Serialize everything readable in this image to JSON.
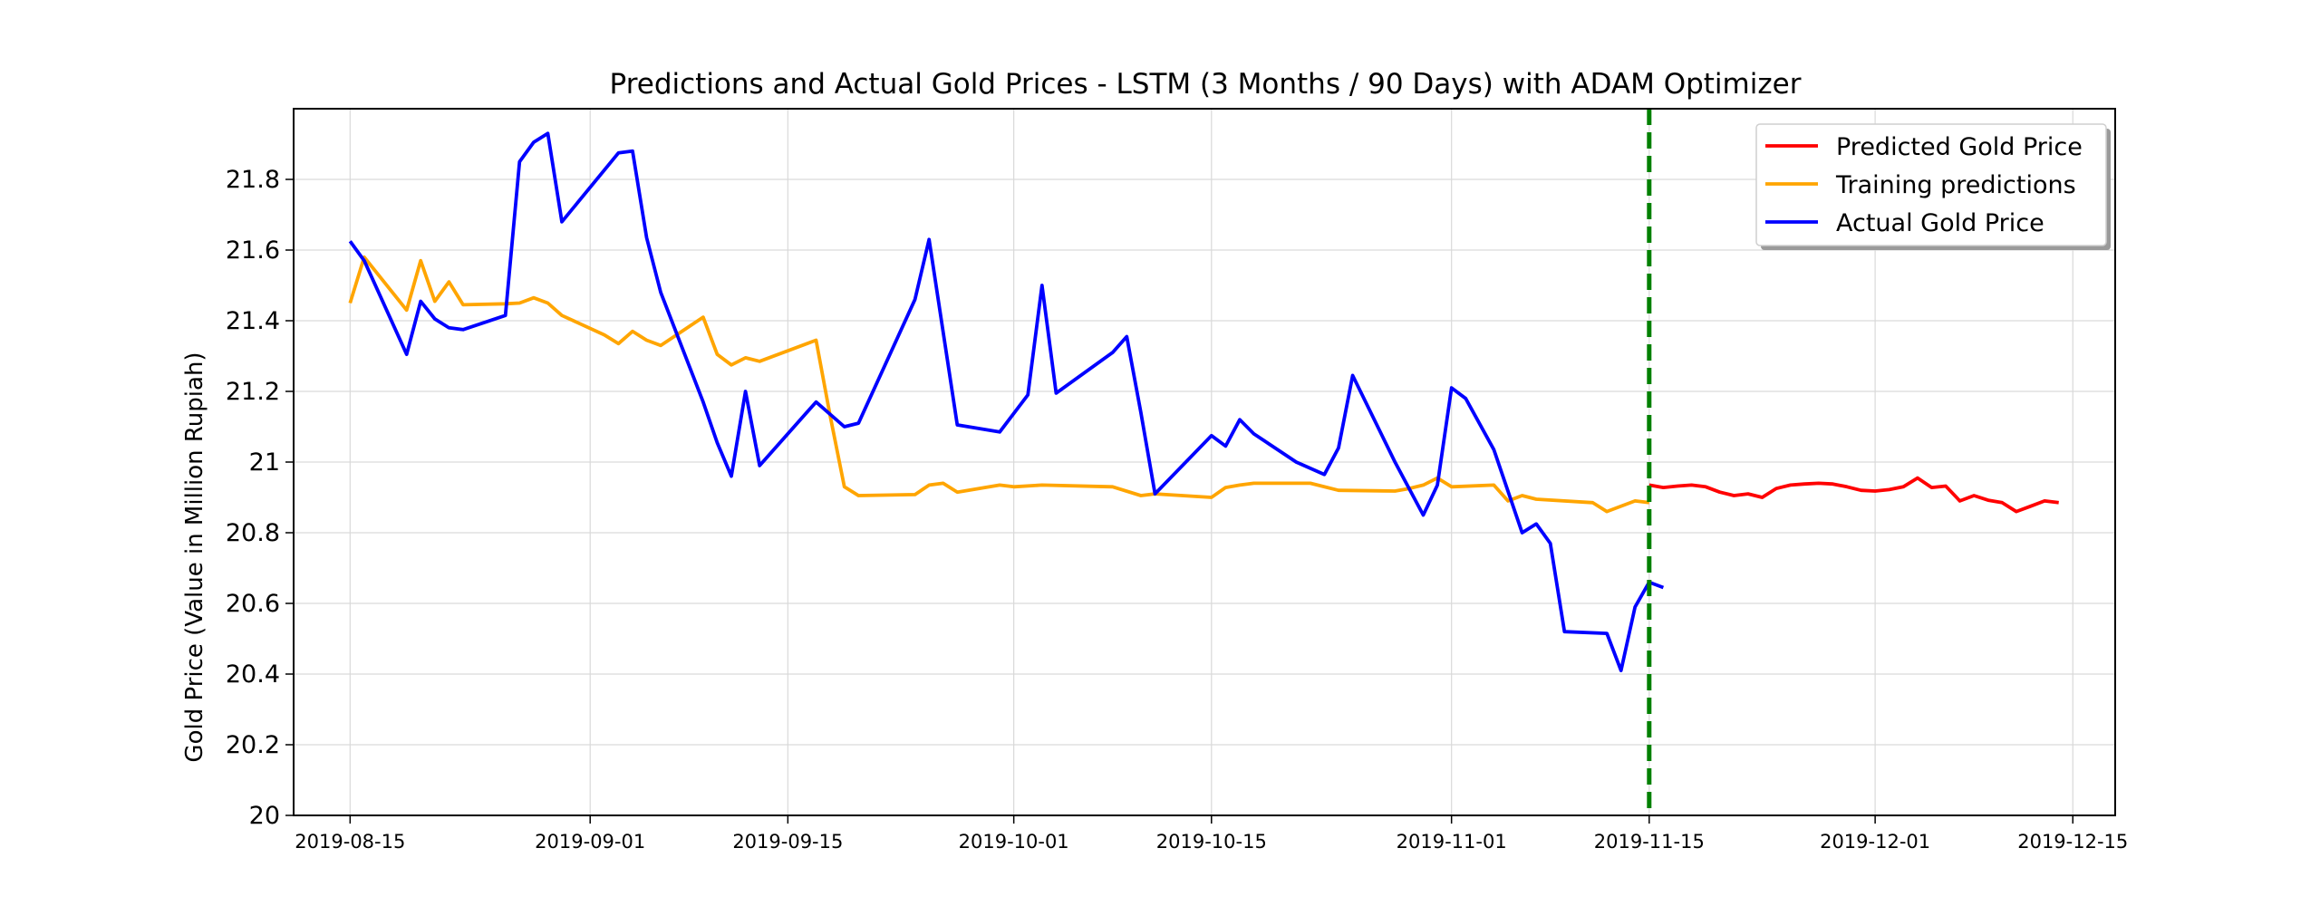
{
  "chart_data": {
    "type": "line",
    "title": "Predictions and Actual Gold Prices - LSTM (3 Months / 90 Days) with ADAM Optimizer",
    "xlabel": "",
    "ylabel": "Gold Price (Value in Million Rupiah)",
    "xlim": [
      "2019-08-11",
      "2019-12-18"
    ],
    "ylim": [
      20,
      22
    ],
    "yticks": [
      20,
      20.2,
      20.4,
      20.6,
      20.8,
      21,
      21.2,
      21.4,
      21.6,
      21.8
    ],
    "ytick_labels": [
      "20",
      "20.2",
      "20.4",
      "20.6",
      "20.8",
      "21",
      "21.2",
      "21.4",
      "21.6",
      "21.8"
    ],
    "xticks": [
      "2019-08-15",
      "2019-09-01",
      "2019-09-15",
      "2019-10-01",
      "2019-10-15",
      "2019-11-01",
      "2019-11-15",
      "2019-12-01",
      "2019-12-15"
    ],
    "xtick_labels": [
      "2019-08-15",
      "2019-09-01",
      "2019-09-15",
      "2019-10-01",
      "2019-10-15",
      "2019-11-01",
      "2019-11-15",
      "2019-12-01",
      "2019-12-15"
    ],
    "grid": true,
    "legend_position": "top-right",
    "vline": {
      "x": "2019-11-15",
      "color": "#008000",
      "style": "dashed"
    },
    "series": [
      {
        "name": "Predicted Gold Price",
        "color": "#ff0000",
        "points": [
          [
            "2019-11-15",
            20.935
          ],
          [
            "2019-11-16",
            20.928
          ],
          [
            "2019-11-17",
            20.932
          ],
          [
            "2019-11-18",
            20.935
          ],
          [
            "2019-11-19",
            20.93
          ],
          [
            "2019-11-20",
            20.915
          ],
          [
            "2019-11-21",
            20.905
          ],
          [
            "2019-11-22",
            20.91
          ],
          [
            "2019-11-23",
            20.9
          ],
          [
            "2019-11-24",
            20.925
          ],
          [
            "2019-11-25",
            20.935
          ],
          [
            "2019-11-26",
            20.938
          ],
          [
            "2019-11-27",
            20.94
          ],
          [
            "2019-11-28",
            20.938
          ],
          [
            "2019-11-29",
            20.93
          ],
          [
            "2019-11-30",
            20.92
          ],
          [
            "2019-12-01",
            20.918
          ],
          [
            "2019-12-02",
            20.922
          ],
          [
            "2019-12-03",
            20.93
          ],
          [
            "2019-12-04",
            20.955
          ],
          [
            "2019-12-05",
            20.928
          ],
          [
            "2019-12-06",
            20.932
          ],
          [
            "2019-12-07",
            20.89
          ],
          [
            "2019-12-08",
            20.905
          ],
          [
            "2019-12-09",
            20.892
          ],
          [
            "2019-12-10",
            20.885
          ],
          [
            "2019-12-11",
            20.86
          ],
          [
            "2019-12-12",
            20.875
          ],
          [
            "2019-12-13",
            20.89
          ],
          [
            "2019-12-14",
            20.885
          ]
        ]
      },
      {
        "name": "Training predictions",
        "color": "#ffa500",
        "points": [
          [
            "2019-08-15",
            21.45
          ],
          [
            "2019-08-16",
            21.58
          ],
          [
            "2019-08-19",
            21.43
          ],
          [
            "2019-08-20",
            21.57
          ],
          [
            "2019-08-21",
            21.455
          ],
          [
            "2019-08-22",
            21.51
          ],
          [
            "2019-08-23",
            21.445
          ],
          [
            "2019-08-26",
            21.448
          ],
          [
            "2019-08-27",
            21.45
          ],
          [
            "2019-08-28",
            21.465
          ],
          [
            "2019-08-29",
            21.45
          ],
          [
            "2019-08-30",
            21.415
          ],
          [
            "2019-09-02",
            21.36
          ],
          [
            "2019-09-03",
            21.335
          ],
          [
            "2019-09-04",
            21.37
          ],
          [
            "2019-09-05",
            21.345
          ],
          [
            "2019-09-06",
            21.33
          ],
          [
            "2019-09-09",
            21.41
          ],
          [
            "2019-09-10",
            21.305
          ],
          [
            "2019-09-11",
            21.275
          ],
          [
            "2019-09-12",
            21.295
          ],
          [
            "2019-09-13",
            21.285
          ],
          [
            "2019-09-17",
            21.345
          ],
          [
            "2019-09-18",
            21.13
          ],
          [
            "2019-09-19",
            20.93
          ],
          [
            "2019-09-20",
            20.905
          ],
          [
            "2019-09-24",
            20.908
          ],
          [
            "2019-09-25",
            20.935
          ],
          [
            "2019-09-26",
            20.94
          ],
          [
            "2019-09-27",
            20.915
          ],
          [
            "2019-09-30",
            20.935
          ],
          [
            "2019-10-01",
            20.93
          ],
          [
            "2019-10-03",
            20.935
          ],
          [
            "2019-10-08",
            20.93
          ],
          [
            "2019-10-10",
            20.905
          ],
          [
            "2019-10-11",
            20.91
          ],
          [
            "2019-10-15",
            20.9
          ],
          [
            "2019-10-16",
            20.928
          ],
          [
            "2019-10-17",
            20.935
          ],
          [
            "2019-10-18",
            20.94
          ],
          [
            "2019-10-22",
            20.94
          ],
          [
            "2019-10-24",
            20.92
          ],
          [
            "2019-10-28",
            20.918
          ],
          [
            "2019-10-29",
            20.925
          ],
          [
            "2019-10-30",
            20.935
          ],
          [
            "2019-10-31",
            20.955
          ],
          [
            "2019-11-01",
            20.93
          ],
          [
            "2019-11-04",
            20.935
          ],
          [
            "2019-11-05",
            20.89
          ],
          [
            "2019-11-06",
            20.905
          ],
          [
            "2019-11-07",
            20.895
          ],
          [
            "2019-11-11",
            20.885
          ],
          [
            "2019-11-12",
            20.86
          ],
          [
            "2019-11-14",
            20.89
          ],
          [
            "2019-11-15",
            20.885
          ]
        ]
      },
      {
        "name": "Actual Gold Price",
        "color": "#0000ff",
        "points": [
          [
            "2019-08-15",
            21.625
          ],
          [
            "2019-08-16",
            21.57
          ],
          [
            "2019-08-19",
            21.305
          ],
          [
            "2019-08-20",
            21.455
          ],
          [
            "2019-08-21",
            21.405
          ],
          [
            "2019-08-22",
            21.38
          ],
          [
            "2019-08-23",
            21.375
          ],
          [
            "2019-08-26",
            21.415
          ],
          [
            "2019-08-27",
            21.85
          ],
          [
            "2019-08-28",
            21.905
          ],
          [
            "2019-08-29",
            21.93
          ],
          [
            "2019-08-30",
            21.68
          ],
          [
            "2019-09-03",
            21.875
          ],
          [
            "2019-09-04",
            21.88
          ],
          [
            "2019-09-05",
            21.635
          ],
          [
            "2019-09-06",
            21.48
          ],
          [
            "2019-09-09",
            21.17
          ],
          [
            "2019-09-10",
            21.055
          ],
          [
            "2019-09-11",
            20.96
          ],
          [
            "2019-09-12",
            21.2
          ],
          [
            "2019-09-13",
            20.99
          ],
          [
            "2019-09-17",
            21.17
          ],
          [
            "2019-09-19",
            21.1
          ],
          [
            "2019-09-20",
            21.11
          ],
          [
            "2019-09-24",
            21.46
          ],
          [
            "2019-09-25",
            21.63
          ],
          [
            "2019-09-27",
            21.105
          ],
          [
            "2019-09-30",
            21.085
          ],
          [
            "2019-10-02",
            21.19
          ],
          [
            "2019-10-03",
            21.5
          ],
          [
            "2019-10-04",
            21.195
          ],
          [
            "2019-10-08",
            21.31
          ],
          [
            "2019-10-09",
            21.355
          ],
          [
            "2019-10-10",
            21.14
          ],
          [
            "2019-10-11",
            20.91
          ],
          [
            "2019-10-15",
            21.075
          ],
          [
            "2019-10-16",
            21.045
          ],
          [
            "2019-10-17",
            21.12
          ],
          [
            "2019-10-18",
            21.08
          ],
          [
            "2019-10-21",
            21.0
          ],
          [
            "2019-10-23",
            20.965
          ],
          [
            "2019-10-24",
            21.04
          ],
          [
            "2019-10-25",
            21.245
          ],
          [
            "2019-10-28",
            21.0
          ],
          [
            "2019-10-30",
            20.85
          ],
          [
            "2019-10-31",
            20.935
          ],
          [
            "2019-11-01",
            21.21
          ],
          [
            "2019-11-02",
            21.18
          ],
          [
            "2019-11-04",
            21.035
          ],
          [
            "2019-11-06",
            20.8
          ],
          [
            "2019-11-07",
            20.825
          ],
          [
            "2019-11-08",
            20.77
          ],
          [
            "2019-11-09",
            20.52
          ],
          [
            "2019-11-12",
            20.515
          ],
          [
            "2019-11-13",
            20.41
          ],
          [
            "2019-11-14",
            20.59
          ],
          [
            "2019-11-15",
            20.66
          ],
          [
            "2019-11-16",
            20.645
          ]
        ]
      }
    ]
  }
}
